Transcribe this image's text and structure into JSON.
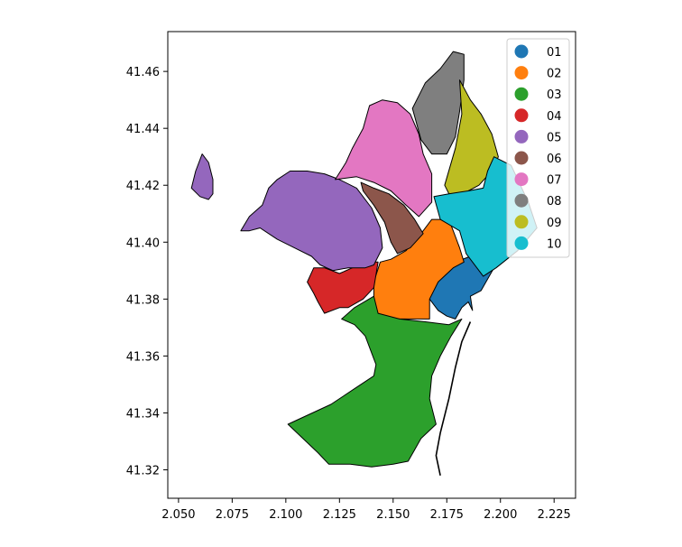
{
  "chart_data": {
    "type": "choropleth-map",
    "title": "",
    "xlabel": "",
    "ylabel": "",
    "xlim": [
      2.045,
      2.235
    ],
    "ylim": [
      41.31,
      41.474
    ],
    "x_ticks": [
      "2.050",
      "2.075",
      "2.100",
      "2.125",
      "2.150",
      "2.175",
      "2.200",
      "2.225"
    ],
    "y_ticks": [
      "41.32",
      "41.34",
      "41.36",
      "41.38",
      "41.40",
      "41.42",
      "41.44",
      "41.46"
    ],
    "grid": false,
    "legend_position": "upper right",
    "categories": [
      "01",
      "02",
      "03",
      "04",
      "05",
      "06",
      "07",
      "08",
      "09",
      "10"
    ],
    "colors": {
      "01": "#1f77b4",
      "02": "#ff7f0e",
      "03": "#2ca02c",
      "04": "#d62728",
      "05": "#9467bd",
      "06": "#8c564b",
      "07": "#e377c2",
      "08": "#7f7f7f",
      "09": "#bcbd22",
      "10": "#17becf"
    },
    "regions": [
      {
        "district": "01",
        "outline": [
          [
            2.167,
            41.386
          ],
          [
            2.172,
            41.391
          ],
          [
            2.179,
            41.393
          ],
          [
            2.186,
            41.395
          ],
          [
            2.194,
            41.394
          ],
          [
            2.197,
            41.391
          ],
          [
            2.191,
            41.383
          ],
          [
            2.186,
            41.381
          ],
          [
            2.187,
            41.376
          ],
          [
            2.185,
            41.379
          ],
          [
            2.182,
            41.377
          ],
          [
            2.179,
            41.373
          ],
          [
            2.175,
            41.374
          ],
          [
            2.171,
            41.376
          ],
          [
            2.167,
            41.38
          ]
        ]
      },
      {
        "district": "02",
        "outline": [
          [
            2.141,
            41.377
          ],
          [
            2.144,
            41.373
          ],
          [
            2.153,
            41.373
          ],
          [
            2.167,
            41.373
          ],
          [
            2.167,
            41.38
          ],
          [
            2.171,
            41.386
          ],
          [
            2.178,
            41.391
          ],
          [
            2.183,
            41.393
          ],
          [
            2.181,
            41.398
          ],
          [
            2.179,
            41.402
          ],
          [
            2.177,
            41.406
          ],
          [
            2.172,
            41.408
          ],
          [
            2.168,
            41.408
          ],
          [
            2.162,
            41.402
          ],
          [
            2.156,
            41.397
          ],
          [
            2.149,
            41.394
          ],
          [
            2.144,
            41.393
          ],
          [
            2.141,
            41.386
          ]
        ]
      },
      {
        "district": "03",
        "outline": [
          [
            2.101,
            41.336
          ],
          [
            2.121,
            41.343
          ],
          [
            2.133,
            41.349
          ],
          [
            2.141,
            41.353
          ],
          [
            2.142,
            41.357
          ],
          [
            2.14,
            41.361
          ],
          [
            2.137,
            41.367
          ],
          [
            2.132,
            41.371
          ],
          [
            2.126,
            41.373
          ],
          [
            2.132,
            41.377
          ],
          [
            2.141,
            41.381
          ],
          [
            2.143,
            41.375
          ],
          [
            2.153,
            41.373
          ],
          [
            2.165,
            41.372
          ],
          [
            2.176,
            41.371
          ],
          [
            2.182,
            41.373
          ],
          [
            2.177,
            41.367
          ],
          [
            2.172,
            41.36
          ],
          [
            2.168,
            41.353
          ],
          [
            2.167,
            41.345
          ],
          [
            2.17,
            41.336
          ],
          [
            2.163,
            41.331
          ],
          [
            2.16,
            41.327
          ],
          [
            2.157,
            41.323
          ],
          [
            2.15,
            41.322
          ],
          [
            2.14,
            41.321
          ],
          [
            2.13,
            41.322
          ],
          [
            2.12,
            41.322
          ],
          [
            2.115,
            41.326
          ]
        ]
      },
      {
        "district": "04",
        "outline": [
          [
            2.11,
            41.386
          ],
          [
            2.113,
            41.391
          ],
          [
            2.118,
            41.391
          ],
          [
            2.125,
            41.389
          ],
          [
            2.131,
            41.391
          ],
          [
            2.137,
            41.393
          ],
          [
            2.143,
            41.393
          ],
          [
            2.141,
            41.384
          ],
          [
            2.136,
            41.38
          ],
          [
            2.129,
            41.377
          ],
          [
            2.125,
            41.377
          ],
          [
            2.118,
            41.375
          ],
          [
            2.115,
            41.379
          ],
          [
            2.113,
            41.382
          ]
        ]
      },
      {
        "district": "05",
        "outline": [
          [
            2.079,
            41.404
          ],
          [
            2.083,
            41.409
          ],
          [
            2.089,
            41.413
          ],
          [
            2.092,
            41.419
          ],
          [
            2.096,
            41.422
          ],
          [
            2.102,
            41.425
          ],
          [
            2.11,
            41.425
          ],
          [
            2.118,
            41.424
          ],
          [
            2.125,
            41.422
          ],
          [
            2.133,
            41.419
          ],
          [
            2.14,
            41.412
          ],
          [
            2.144,
            41.405
          ],
          [
            2.145,
            41.398
          ],
          [
            2.141,
            41.392
          ],
          [
            2.137,
            41.391
          ],
          [
            2.129,
            41.391
          ],
          [
            2.122,
            41.39
          ],
          [
            2.116,
            41.392
          ],
          [
            2.112,
            41.395
          ],
          [
            2.104,
            41.398
          ],
          [
            2.096,
            41.401
          ],
          [
            2.088,
            41.405
          ],
          [
            2.083,
            41.404
          ]
        ]
      },
      {
        "district": "05-w",
        "outline": [
          [
            2.056,
            41.419
          ],
          [
            2.06,
            41.416
          ],
          [
            2.064,
            41.415
          ],
          [
            2.066,
            41.417
          ],
          [
            2.066,
            41.422
          ],
          [
            2.064,
            41.428
          ],
          [
            2.061,
            41.431
          ],
          [
            2.058,
            41.425
          ]
        ]
      },
      {
        "district": "06",
        "outline": [
          [
            2.135,
            41.421
          ],
          [
            2.141,
            41.419
          ],
          [
            2.148,
            41.417
          ],
          [
            2.155,
            41.413
          ],
          [
            2.16,
            41.408
          ],
          [
            2.164,
            41.403
          ],
          [
            2.158,
            41.398
          ],
          [
            2.152,
            41.396
          ],
          [
            2.149,
            41.4
          ],
          [
            2.146,
            41.407
          ],
          [
            2.141,
            41.413
          ],
          [
            2.136,
            41.418
          ]
        ]
      },
      {
        "district": "07",
        "outline": [
          [
            2.123,
            41.422
          ],
          [
            2.128,
            41.428
          ],
          [
            2.131,
            41.433
          ],
          [
            2.136,
            41.44
          ],
          [
            2.139,
            41.448
          ],
          [
            2.145,
            41.45
          ],
          [
            2.152,
            41.449
          ],
          [
            2.158,
            41.445
          ],
          [
            2.162,
            41.438
          ],
          [
            2.164,
            41.431
          ],
          [
            2.168,
            41.424
          ],
          [
            2.168,
            41.414
          ],
          [
            2.162,
            41.409
          ],
          [
            2.156,
            41.413
          ],
          [
            2.149,
            41.418
          ],
          [
            2.141,
            41.421
          ],
          [
            2.133,
            41.423
          ]
        ]
      },
      {
        "district": "08",
        "outline": [
          [
            2.159,
            41.447
          ],
          [
            2.165,
            41.456
          ],
          [
            2.172,
            41.461
          ],
          [
            2.178,
            41.467
          ],
          [
            2.183,
            41.466
          ],
          [
            2.183,
            41.457
          ],
          [
            2.181,
            41.446
          ],
          [
            2.179,
            41.437
          ],
          [
            2.175,
            41.431
          ],
          [
            2.168,
            41.431
          ],
          [
            2.163,
            41.436
          ]
        ]
      },
      {
        "district": "09",
        "outline": [
          [
            2.181,
            41.457
          ],
          [
            2.186,
            41.45
          ],
          [
            2.191,
            41.445
          ],
          [
            2.196,
            41.438
          ],
          [
            2.199,
            41.43
          ],
          [
            2.196,
            41.425
          ],
          [
            2.19,
            41.42
          ],
          [
            2.185,
            41.418
          ],
          [
            2.178,
            41.414
          ],
          [
            2.174,
            41.42
          ],
          [
            2.179,
            41.433
          ],
          [
            2.182,
            41.445
          ]
        ]
      },
      {
        "district": "10",
        "outline": [
          [
            2.169,
            41.416
          ],
          [
            2.176,
            41.417
          ],
          [
            2.185,
            41.418
          ],
          [
            2.192,
            41.419
          ],
          [
            2.194,
            41.425
          ],
          [
            2.197,
            41.43
          ],
          [
            2.205,
            41.427
          ],
          [
            2.213,
            41.414
          ],
          [
            2.217,
            41.405
          ],
          [
            2.208,
            41.397
          ],
          [
            2.198,
            41.391
          ],
          [
            2.192,
            41.388
          ],
          [
            2.184,
            41.396
          ],
          [
            2.181,
            41.404
          ],
          [
            2.172,
            41.408
          ]
        ]
      }
    ]
  }
}
